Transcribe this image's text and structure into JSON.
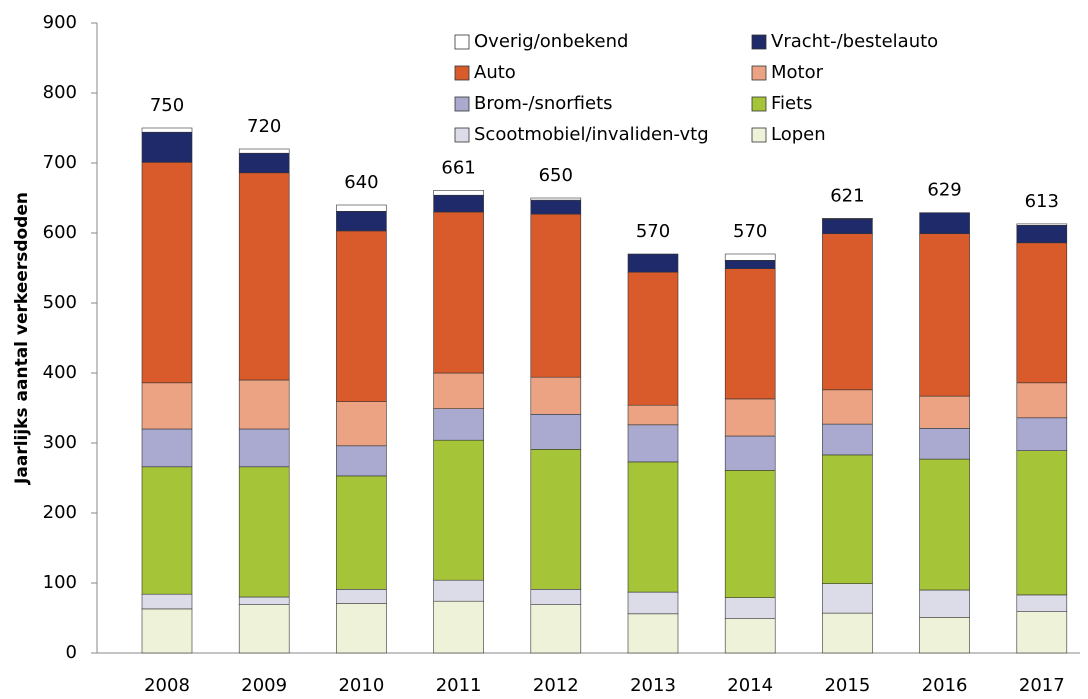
{
  "chart_data": {
    "type": "stacked-bar",
    "y_label": "Jaarlijks aantal verkeersdoden",
    "categories": [
      "2008",
      "2009",
      "2010",
      "2011",
      "2012",
      "2013",
      "2014",
      "2015",
      "2016",
      "2017"
    ],
    "totals": [
      750,
      720,
      640,
      661,
      650,
      570,
      570,
      621,
      629,
      613
    ],
    "series": [
      {
        "name": "Overig/onbekend",
        "color": "#ffffff",
        "values": [
          6,
          6,
          9,
          7,
          3,
          0,
          9,
          1,
          0,
          2
        ]
      },
      {
        "name": "Vracht-/bestelauto",
        "color": "#1f2a6b",
        "values": [
          43,
          28,
          28,
          24,
          20,
          26,
          12,
          21,
          30,
          25
        ]
      },
      {
        "name": "Auto",
        "color": "#d95a2b",
        "values": [
          315,
          296,
          244,
          230,
          233,
          190,
          186,
          223,
          232,
          200
        ]
      },
      {
        "name": "Motor",
        "color": "#eba383",
        "values": [
          66,
          70,
          63,
          51,
          53,
          28,
          53,
          49,
          46,
          50
        ]
      },
      {
        "name": "Brom-/snorfiets",
        "color": "#aaaad0",
        "values": [
          54,
          54,
          43,
          45,
          50,
          53,
          49,
          44,
          44,
          47
        ]
      },
      {
        "name": "Fiets",
        "color": "#a5c438",
        "values": [
          182,
          186,
          162,
          200,
          200,
          186,
          182,
          184,
          187,
          206
        ]
      },
      {
        "name": "Scootmobiel/invaliden-vtg",
        "color": "#dcdbe8",
        "values": [
          21,
          11,
          20,
          30,
          22,
          31,
          30,
          42,
          39,
          24
        ]
      },
      {
        "name": "Lopen",
        "color": "#eef2d8",
        "values": [
          63,
          69,
          71,
          74,
          69,
          56,
          49,
          57,
          51,
          59
        ]
      }
    ],
    "ylim": [
      0,
      900
    ],
    "yticks": [
      0,
      100,
      200,
      300,
      400,
      500,
      600,
      700,
      800,
      900
    ]
  }
}
